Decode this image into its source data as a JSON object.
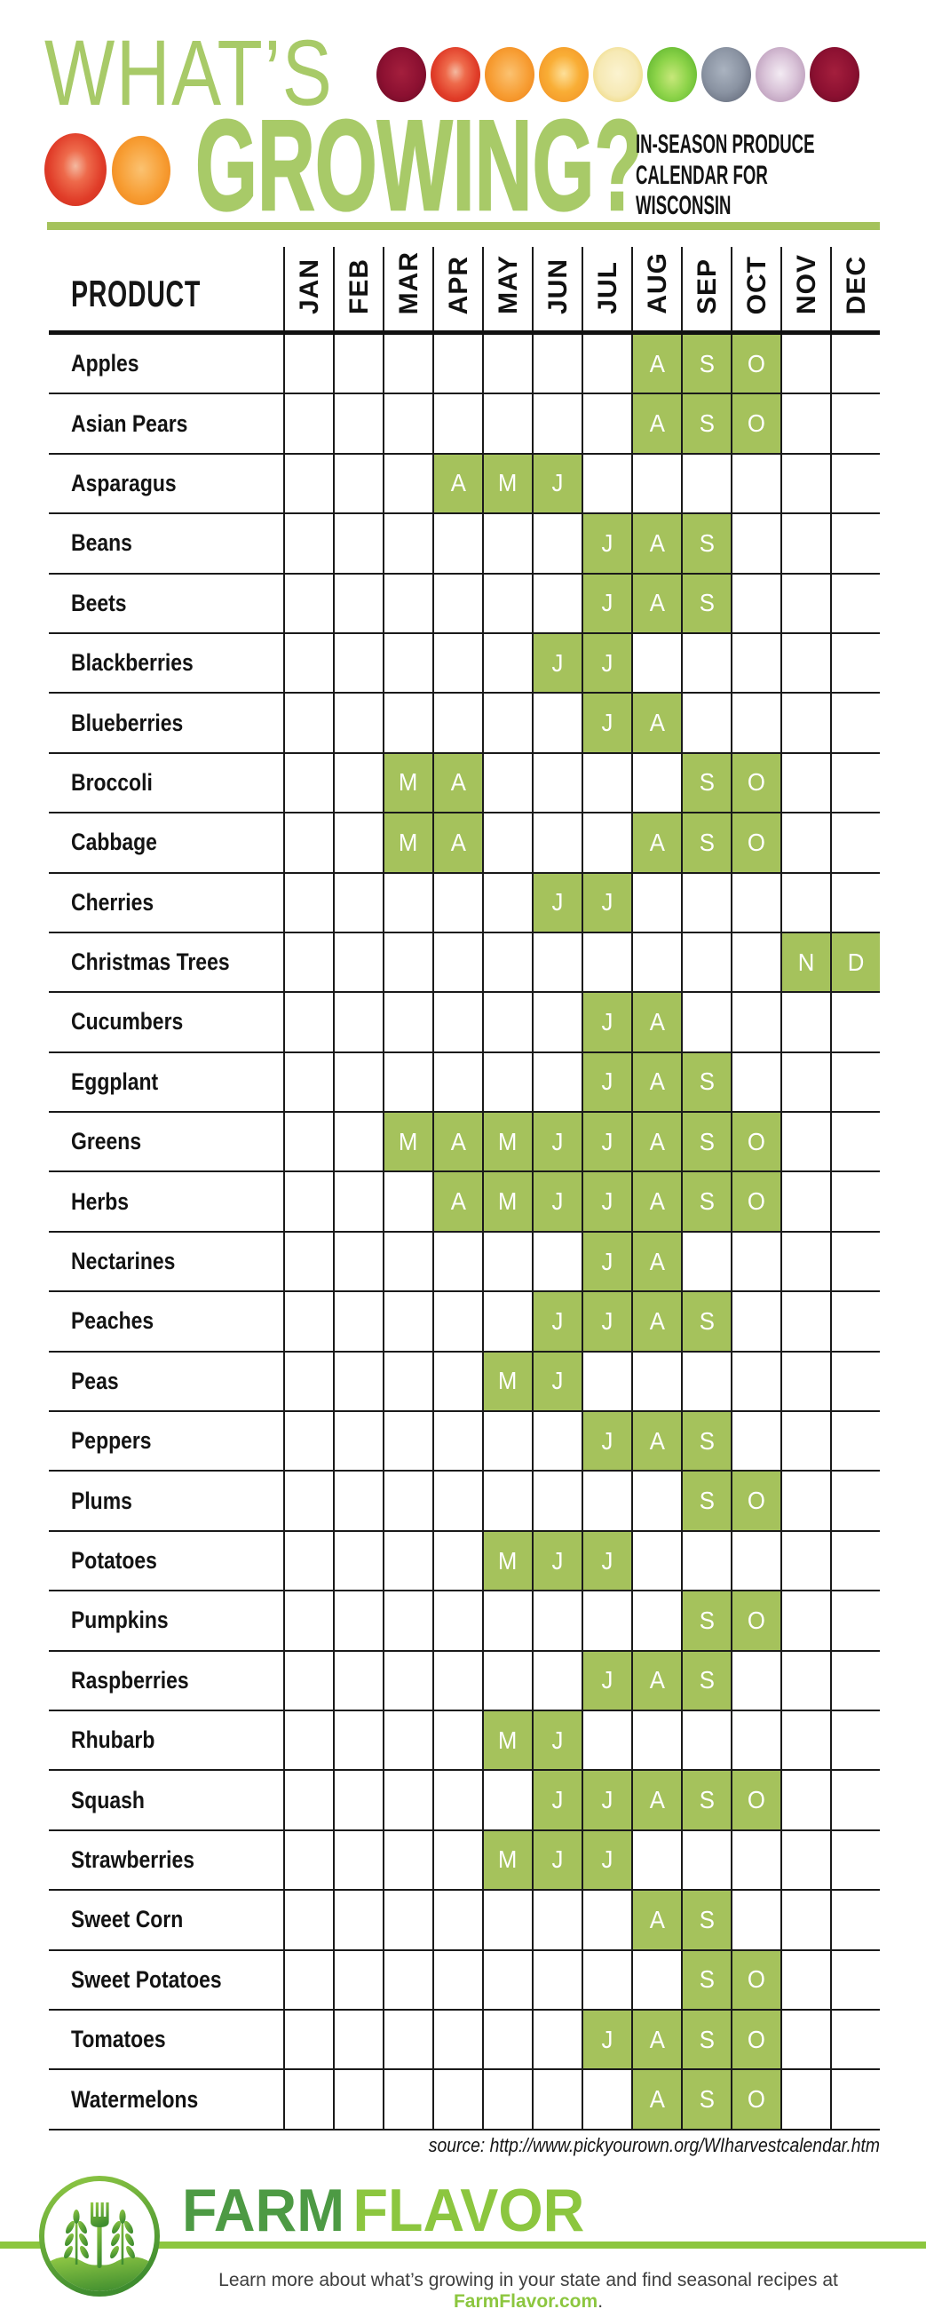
{
  "header": {
    "title_line1": "WHAT’S",
    "title_line2": "GROWING?",
    "subtitle_lines": [
      "IN-SEASON PRODUCE",
      "CALENDAR FOR",
      "WISCONSIN"
    ],
    "icons_row1": [
      "beet",
      "tomato",
      "carrot",
      "orange",
      "lemon",
      "lettuce",
      "cabbage",
      "onion",
      "beet"
    ],
    "icons_row2": [
      "tomato",
      "carrot"
    ]
  },
  "colors": {
    "title_green": "#a8ca68",
    "divider_green": "#a5c25c",
    "cell_green": "#a5c25c",
    "farm_dark_green": "#4d9a44",
    "flavor_light_green": "#8cc63f",
    "bar_green": "#8cc63f",
    "link_green": "#8cc63f"
  },
  "table": {
    "product_header": "PRODUCT"
  },
  "chart_data": {
    "type": "table",
    "title": "WHAT’S GROWING? — In-Season Produce Calendar for Wisconsin",
    "columns": [
      "JAN",
      "FEB",
      "MAR",
      "APR",
      "MAY",
      "JUN",
      "JUL",
      "AUG",
      "SEP",
      "OCT",
      "NOV",
      "DEC"
    ],
    "cell_letter_rule": "first letter of month abbreviation shown in highlighted cells",
    "rows": [
      {
        "product": "Apples",
        "in_season": [
          "AUG",
          "SEP",
          "OCT"
        ]
      },
      {
        "product": "Asian Pears",
        "in_season": [
          "AUG",
          "SEP",
          "OCT"
        ]
      },
      {
        "product": "Asparagus",
        "in_season": [
          "APR",
          "MAY",
          "JUN"
        ]
      },
      {
        "product": "Beans",
        "in_season": [
          "JUL",
          "AUG",
          "SEP"
        ]
      },
      {
        "product": "Beets",
        "in_season": [
          "JUL",
          "AUG",
          "SEP"
        ]
      },
      {
        "product": "Blackberries",
        "in_season": [
          "JUN",
          "JUL"
        ]
      },
      {
        "product": "Blueberries",
        "in_season": [
          "JUL",
          "AUG"
        ]
      },
      {
        "product": "Broccoli",
        "in_season": [
          "MAR",
          "APR",
          "SEP",
          "OCT"
        ]
      },
      {
        "product": "Cabbage",
        "in_season": [
          "MAR",
          "APR",
          "AUG",
          "SEP",
          "OCT"
        ]
      },
      {
        "product": "Cherries",
        "in_season": [
          "JUN",
          "JUL"
        ]
      },
      {
        "product": "Christmas Trees",
        "in_season": [
          "NOV",
          "DEC"
        ]
      },
      {
        "product": "Cucumbers",
        "in_season": [
          "JUL",
          "AUG"
        ]
      },
      {
        "product": "Eggplant",
        "in_season": [
          "JUL",
          "AUG",
          "SEP"
        ]
      },
      {
        "product": "Greens",
        "in_season": [
          "MAR",
          "APR",
          "MAY",
          "JUN",
          "JUL",
          "AUG",
          "SEP",
          "OCT"
        ]
      },
      {
        "product": "Herbs",
        "in_season": [
          "APR",
          "MAY",
          "JUN",
          "JUL",
          "AUG",
          "SEP",
          "OCT"
        ]
      },
      {
        "product": "Nectarines",
        "in_season": [
          "JUL",
          "AUG"
        ]
      },
      {
        "product": "Peaches",
        "in_season": [
          "JUN",
          "JUL",
          "AUG",
          "SEP"
        ]
      },
      {
        "product": "Peas",
        "in_season": [
          "MAY",
          "JUN"
        ]
      },
      {
        "product": "Peppers",
        "in_season": [
          "JUL",
          "AUG",
          "SEP"
        ]
      },
      {
        "product": "Plums",
        "in_season": [
          "SEP",
          "OCT"
        ]
      },
      {
        "product": "Potatoes",
        "in_season": [
          "MAY",
          "JUN",
          "JUL"
        ]
      },
      {
        "product": "Pumpkins",
        "in_season": [
          "SEP",
          "OCT"
        ]
      },
      {
        "product": "Raspberries",
        "in_season": [
          "JUL",
          "AUG",
          "SEP"
        ]
      },
      {
        "product": "Rhubarb",
        "in_season": [
          "MAY",
          "JUN"
        ]
      },
      {
        "product": "Squash",
        "in_season": [
          "JUN",
          "JUL",
          "AUG",
          "SEP",
          "OCT"
        ]
      },
      {
        "product": "Strawberries",
        "in_season": [
          "MAY",
          "JUN",
          "JUL"
        ]
      },
      {
        "product": "Sweet Corn",
        "in_season": [
          "AUG",
          "SEP"
        ]
      },
      {
        "product": "Sweet Potatoes",
        "in_season": [
          "SEP",
          "OCT"
        ]
      },
      {
        "product": "Tomatoes",
        "in_season": [
          "JUL",
          "AUG",
          "SEP",
          "OCT"
        ]
      },
      {
        "product": "Watermelons",
        "in_season": [
          "AUG",
          "SEP",
          "OCT"
        ]
      }
    ]
  },
  "footer": {
    "source": "source: http://www.pickyourown.org/WIharvestcalendar.htm",
    "brand_word1": "FARM",
    "brand_word2": "FLAVOR",
    "tagline_prefix": "Learn more about what’s growing in your state and find seasonal recipes at ",
    "tagline_link": "FarmFlavor.com",
    "tagline_suffix": "."
  }
}
